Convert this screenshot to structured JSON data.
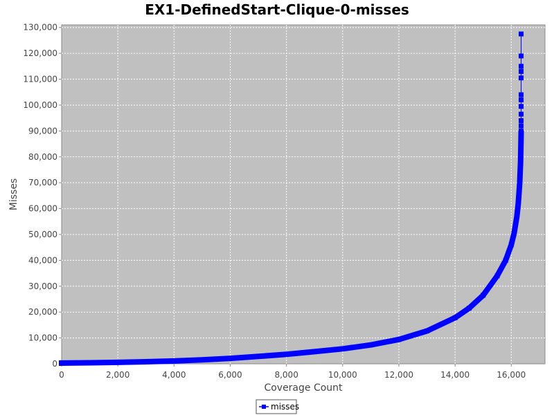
{
  "chart_data": {
    "type": "line",
    "title": "EX1-DefinedStart-Clique-0-misses",
    "xlabel": "Coverage Count",
    "ylabel": "Misses",
    "xlim": [
      0,
      17200
    ],
    "ylim": [
      0,
      131000
    ],
    "xticks": [
      0,
      2000,
      4000,
      6000,
      8000,
      10000,
      12000,
      14000,
      16000
    ],
    "xtick_labels": [
      "0",
      "2,000",
      "4,000",
      "6,000",
      "8,000",
      "10,000",
      "12,000",
      "14,000",
      "16,000"
    ],
    "yticks": [
      0,
      10000,
      20000,
      30000,
      40000,
      50000,
      60000,
      70000,
      80000,
      90000,
      100000,
      110000,
      120000,
      130000
    ],
    "ytick_labels": [
      "0",
      "10,000",
      "20,000",
      "30,000",
      "40,000",
      "50,000",
      "60,000",
      "70,000",
      "80,000",
      "90,000",
      "100,000",
      "110,000",
      "120,000",
      "130,000"
    ],
    "grid": true,
    "legend_position": "bottom-center",
    "colors": {
      "plot_background": "#c0c0c0",
      "gridline": "#ffffff",
      "series": "#0000ff"
    },
    "series": [
      {
        "name": "misses",
        "marker": "square",
        "curve": [
          [
            0,
            300
          ],
          [
            1000,
            400
          ],
          [
            2000,
            550
          ],
          [
            3000,
            800
          ],
          [
            4000,
            1100
          ],
          [
            5000,
            1550
          ],
          [
            6000,
            2100
          ],
          [
            7000,
            2850
          ],
          [
            8000,
            3700
          ],
          [
            9000,
            4700
          ],
          [
            10000,
            5800
          ],
          [
            11000,
            7300
          ],
          [
            12000,
            9400
          ],
          [
            13000,
            12700
          ],
          [
            14000,
            17800
          ],
          [
            14500,
            21500
          ],
          [
            15000,
            26500
          ],
          [
            15500,
            34000
          ],
          [
            15800,
            40000
          ],
          [
            16000,
            46000
          ],
          [
            16100,
            50500
          ],
          [
            16200,
            57000
          ],
          [
            16250,
            62000
          ],
          [
            16300,
            70000
          ],
          [
            16330,
            78000
          ],
          [
            16345,
            86000
          ],
          [
            16350,
            89000
          ]
        ],
        "outliers": [
          [
            16350,
            90000
          ],
          [
            16350,
            92000
          ],
          [
            16350,
            94000
          ],
          [
            16350,
            96500
          ],
          [
            16350,
            99500
          ],
          [
            16350,
            102000
          ],
          [
            16350,
            104000
          ],
          [
            16350,
            110500
          ],
          [
            16350,
            113000
          ],
          [
            16350,
            115000
          ],
          [
            16350,
            119000
          ],
          [
            16350,
            127500
          ]
        ]
      }
    ]
  }
}
